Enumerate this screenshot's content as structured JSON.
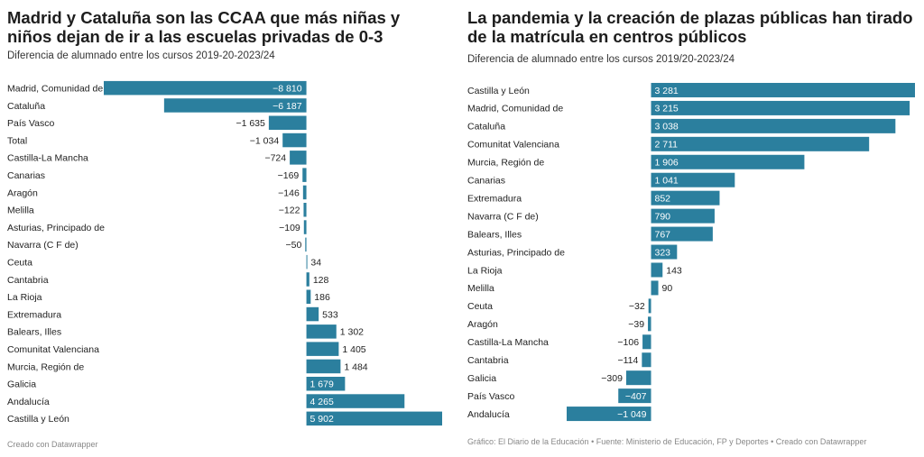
{
  "colors": {
    "bar": "#2b7f9e",
    "text": "#222222",
    "inside_text": "#ffffff"
  },
  "charts": [
    {
      "title": "Madrid y Cataluña son las CCAA que más niñas y niños dejan de ir a las escuelas privadas de 0-3",
      "subtitle": "Diferencia de alumnado entre los cursos 2019-20-2023/24",
      "footer": "Creado con Datawrapper"
    },
    {
      "title": "La pandemia y la creación de plazas públicas han tirado de la matrícula en centros públicos",
      "subtitle": "Diferencia de alumnado entre los cursos 2019/20-2023/24",
      "footer": "Gráfico: El Diario de la Educación  • Fuente: Ministerio de Educación, FP y Deportes • Creado con Datawrapper"
    }
  ],
  "chart_data": [
    {
      "type": "bar",
      "orientation": "horizontal",
      "title": "Madrid y Cataluña son las CCAA que más niñas y niños dejan de ir a las escuelas privadas de 0-3",
      "subtitle": "Diferencia de alumnado entre los cursos 2019-20-2023/24",
      "categories": [
        "Madrid, Comunidad de",
        "Cataluña",
        "País Vasco",
        "Total",
        "Castilla-La Mancha",
        "Canarias",
        "Aragón",
        "Melilla",
        "Asturias, Principado de",
        "Navarra (C F de)",
        "Ceuta",
        "Cantabria",
        "La Rioja",
        "Extremadura",
        "Balears, Illes",
        "Comunitat Valenciana",
        "Murcia, Región de",
        "Galicia",
        "Andalucía",
        "Castilla y León"
      ],
      "values": [
        -8810,
        -6187,
        -1635,
        -1034,
        -724,
        -169,
        -146,
        -122,
        -109,
        -50,
        34,
        128,
        186,
        533,
        1302,
        1405,
        1484,
        1679,
        4265,
        5902
      ],
      "value_labels": [
        "−8 810",
        "−6 187",
        "−1 635",
        "−1 034",
        "−724",
        "−169",
        "−146",
        "−122",
        "−109",
        "−50",
        "34",
        "128",
        "186",
        "533",
        "1 302",
        "1 405",
        "1 484",
        "1 679",
        "4 265",
        "5 902"
      ],
      "xlim": [
        -8810,
        5902
      ],
      "grid": false,
      "legend": "none"
    },
    {
      "type": "bar",
      "orientation": "horizontal",
      "title": "La pandemia y la creación de plazas públicas han tirado de la matrícula en centros públicos",
      "subtitle": "Diferencia de alumnado entre los cursos 2019/20-2023/24",
      "categories": [
        "Castilla y León",
        "Madrid, Comunidad de",
        "Cataluña",
        "Comunitat Valenciana",
        "Murcia, Región de",
        "Canarias",
        "Extremadura",
        "Navarra (C F de)",
        "Balears, Illes",
        "Asturias, Principado de",
        "La Rioja",
        "Melilla",
        "Ceuta",
        "Aragón",
        "Castilla-La Mancha",
        "Cantabria",
        "Galicia",
        "País Vasco",
        "Andalucía"
      ],
      "values": [
        3281,
        3215,
        3038,
        2711,
        1906,
        1041,
        852,
        790,
        767,
        323,
        143,
        90,
        -32,
        -39,
        -106,
        -114,
        -309,
        -407,
        -1049
      ],
      "value_labels": [
        "3 281",
        "3 215",
        "3 038",
        "2 711",
        "1 906",
        "1 041",
        "852",
        "790",
        "767",
        "323",
        "143",
        "90",
        "−32",
        "−39",
        "−106",
        "−114",
        "−309",
        "−407",
        "−1 049"
      ],
      "xlim": [
        -1049,
        3281
      ],
      "grid": false,
      "legend": "none"
    }
  ]
}
